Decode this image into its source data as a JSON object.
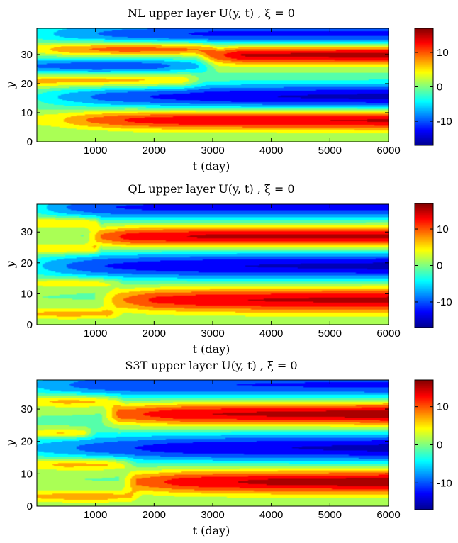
{
  "chart_data": [
    {
      "type": "heatmap",
      "title": "NL upper layer  U(y, t)  ,  ξ = 0",
      "xlabel": "t (day)",
      "ylabel": "y",
      "xlim": [
        0,
        6000
      ],
      "ylim": [
        0,
        39
      ],
      "xticks": [
        1000,
        2000,
        3000,
        4000,
        5000,
        6000
      ],
      "yticks": [
        0,
        10,
        20,
        30
      ],
      "colorbar": {
        "range": [
          -17,
          17
        ],
        "ticks": [
          -10,
          0,
          10
        ]
      },
      "jets": [
        {
          "y": 7.5,
          "x": [
            0,
            350,
            900,
            1600,
            2500,
            6000
          ],
          "amp": [
            4,
            5,
            9,
            12,
            14,
            15
          ],
          "width": [
            2.0,
            2.2,
            2.3,
            2.4,
            2.4,
            2.5
          ]
        },
        {
          "y": 15.5,
          "x": [
            0,
            400,
            1200,
            2200,
            3500,
            6000
          ],
          "amp": [
            -3,
            -6,
            -10,
            -12,
            -14,
            -15
          ],
          "width": [
            2.5,
            2.6,
            2.8,
            3.0,
            3.1,
            3.2
          ]
        },
        {
          "y": 21,
          "x": [
            0,
            1000,
            2000,
            2500,
            2900,
            3100,
            6000
          ],
          "amp": [
            7,
            8,
            8,
            7,
            0,
            0,
            0
          ],
          "width": [
            1.8,
            1.8,
            1.8,
            1.8,
            1.8,
            1.8,
            1.8
          ]
        },
        {
          "y": 26,
          "x": [
            0,
            1000,
            2000,
            2800,
            3100,
            6000
          ],
          "amp": [
            -9,
            -11,
            -10,
            -6,
            0,
            0
          ],
          "width": [
            2.0,
            2.0,
            2.0,
            2.0,
            2.0,
            2.0
          ]
        },
        {
          "y": 30,
          "x": [
            0,
            1500,
            2700,
            3000,
            3500,
            6000
          ],
          "amp": [
            0,
            0,
            0,
            10,
            15,
            16
          ],
          "width": [
            2.4,
            2.4,
            2.4,
            2.4,
            2.4,
            2.4
          ]
        },
        {
          "y": 32,
          "x": [
            0,
            500,
            1500,
            2700,
            3100,
            6000
          ],
          "amp": [
            5,
            9,
            12,
            11,
            0,
            0
          ],
          "width": [
            1.7,
            1.7,
            1.7,
            1.7,
            1.7,
            1.7
          ]
        },
        {
          "y": 37,
          "x": [
            0,
            500,
            1500,
            3000,
            6000
          ],
          "amp": [
            -4,
            -7,
            -10,
            -12,
            -12
          ],
          "width": [
            2.8,
            2.8,
            2.8,
            2.9,
            3.0
          ]
        }
      ]
    },
    {
      "type": "heatmap",
      "title": "QL upper layer  U(y, t)  ,  ξ = 0",
      "xlabel": "t (day)",
      "ylabel": "y",
      "xlim": [
        0,
        6000
      ],
      "ylim": [
        0,
        39
      ],
      "xticks": [
        1000,
        2000,
        3000,
        4000,
        5000,
        6000
      ],
      "yticks": [
        0,
        10,
        20,
        30
      ],
      "colorbar": {
        "range": [
          -17,
          17
        ],
        "ticks": [
          -10,
          0,
          10
        ]
      },
      "jets": [
        {
          "y": 3.5,
          "x": [
            0,
            500,
            1200,
            1500,
            6000
          ],
          "amp": [
            6,
            7,
            6,
            0,
            0
          ],
          "width": [
            1.3,
            1.3,
            1.3,
            1.3,
            1.3
          ]
        },
        {
          "y": 8,
          "x": [
            0,
            1000,
            1400,
            2000,
            3000,
            6000
          ],
          "amp": [
            0,
            0,
            8,
            12,
            14,
            15
          ],
          "width": [
            2.6,
            2.6,
            2.7,
            2.8,
            2.9,
            3.0
          ]
        },
        {
          "y": 13.5,
          "x": [
            0,
            500,
            1000,
            1350,
            1500,
            6000
          ],
          "amp": [
            4,
            6,
            6,
            3,
            0,
            0
          ],
          "width": [
            1.2,
            1.2,
            1.2,
            1.2,
            1.2,
            1.2
          ]
        },
        {
          "y": 19,
          "x": [
            0,
            400,
            1000,
            2000,
            3000,
            6000
          ],
          "amp": [
            -5,
            -8,
            -11,
            -13,
            -14,
            -15
          ],
          "width": [
            2.6,
            2.8,
            3.0,
            3.1,
            3.2,
            3.2
          ]
        },
        {
          "y": 24.5,
          "x": [
            0,
            700,
            1000,
            1100,
            6000
          ],
          "amp": [
            6,
            7,
            6,
            0,
            0
          ],
          "width": [
            1.3,
            1.3,
            1.3,
            1.3,
            1.3
          ]
        },
        {
          "y": 28.5,
          "x": [
            0,
            800,
            1100,
            1600,
            3000,
            6000
          ],
          "amp": [
            0,
            0,
            9,
            13,
            15,
            15
          ],
          "width": [
            2.2,
            2.2,
            2.3,
            2.4,
            2.4,
            2.5
          ]
        },
        {
          "y": 33,
          "x": [
            0,
            700,
            1000,
            1100,
            6000
          ],
          "amp": [
            6,
            7,
            6,
            0,
            0
          ],
          "width": [
            1.3,
            1.3,
            1.3,
            1.3,
            1.3
          ]
        },
        {
          "y": 38,
          "x": [
            0,
            400,
            1000,
            2000,
            6000
          ],
          "amp": [
            -4,
            -8,
            -11,
            -12,
            -12
          ],
          "width": [
            2.5,
            2.6,
            2.8,
            2.9,
            3.0
          ]
        }
      ]
    },
    {
      "type": "heatmap",
      "title": "S3T upper layer  U(y, t)  ,  ξ = 0",
      "xlabel": "t (day)",
      "ylabel": "y",
      "xlim": [
        0,
        6000
      ],
      "ylim": [
        0,
        39
      ],
      "xticks": [
        1000,
        2000,
        3000,
        4000,
        5000,
        6000
      ],
      "yticks": [
        0,
        10,
        20,
        30
      ],
      "colorbar": {
        "range": [
          -17,
          17
        ],
        "ticks": [
          -10,
          0,
          10
        ]
      },
      "jets": [
        {
          "y": 3,
          "x": [
            0,
            500,
            1200,
            1600,
            1800,
            6000
          ],
          "amp": [
            6,
            7,
            7,
            5,
            0,
            0
          ],
          "width": [
            1.4,
            1.4,
            1.4,
            1.4,
            1.4,
            1.4
          ]
        },
        {
          "y": 7.5,
          "x": [
            0,
            1400,
            1700,
            2500,
            4000,
            6000
          ],
          "amp": [
            0,
            0,
            9,
            13,
            15,
            16
          ],
          "width": [
            2.4,
            2.4,
            2.5,
            2.6,
            2.7,
            2.7
          ]
        },
        {
          "y": 13,
          "x": [
            0,
            500,
            1200,
            1500,
            1700,
            6000
          ],
          "amp": [
            6,
            8,
            8,
            5,
            0,
            0
          ],
          "width": [
            1.4,
            1.4,
            1.4,
            1.4,
            1.4,
            1.4
          ]
        },
        {
          "y": 18,
          "x": [
            0,
            800,
            1500,
            2500,
            4000,
            6000
          ],
          "amp": [
            -6,
            -9,
            -11,
            -13,
            -14,
            -15
          ],
          "width": [
            2.8,
            2.9,
            3.0,
            3.1,
            3.2,
            3.2
          ]
        },
        {
          "y": 22.5,
          "x": [
            0,
            400,
            800,
            1000,
            6000
          ],
          "amp": [
            6,
            8,
            7,
            0,
            0
          ],
          "width": [
            1.0,
            1.0,
            1.0,
            1.0,
            1.0
          ]
        },
        {
          "y": 28.5,
          "x": [
            0,
            1100,
            1400,
            2500,
            4000,
            6000
          ],
          "amp": [
            0,
            0,
            10,
            14,
            15,
            16
          ],
          "width": [
            2.3,
            2.3,
            2.4,
            2.5,
            2.5,
            2.6
          ]
        },
        {
          "y": 32.5,
          "x": [
            0,
            500,
            1000,
            1300,
            1500,
            6000
          ],
          "amp": [
            6,
            8,
            8,
            5,
            0,
            0
          ],
          "width": [
            1.4,
            1.4,
            1.4,
            1.4,
            1.4,
            1.4
          ]
        },
        {
          "y": 37.5,
          "x": [
            0,
            400,
            1000,
            2000,
            6000
          ],
          "amp": [
            -6,
            -8,
            -10,
            -11,
            -12
          ],
          "width": [
            2.6,
            2.8,
            3.0,
            3.0,
            3.0
          ]
        }
      ]
    }
  ]
}
